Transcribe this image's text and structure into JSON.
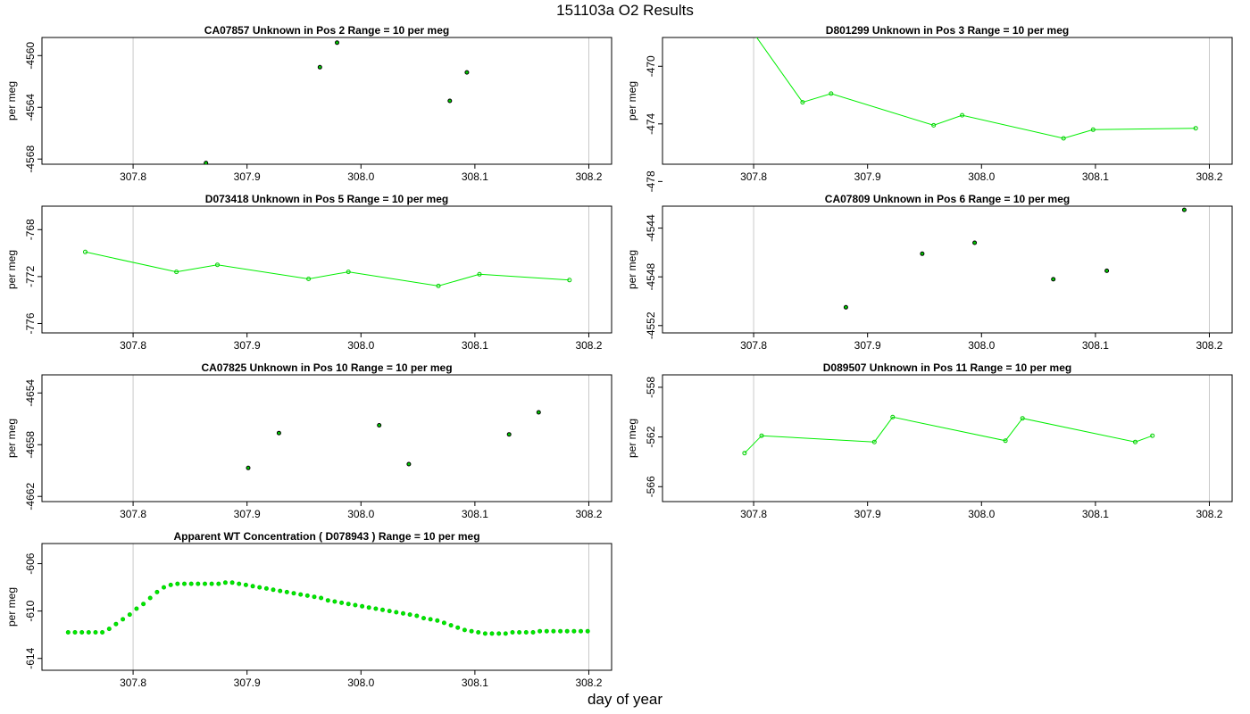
{
  "title": "151103a  O2 Results",
  "xlabel": "day of year",
  "chart_data": [
    {
      "type": "scatter",
      "title": "CA07857    Unknown in Pos 2          Range = 10 per meg",
      "xlabel": "",
      "ylabel": "per meg",
      "xlim": [
        307.72,
        308.22
      ],
      "ylim": [
        -4568.4,
        -4558.6
      ],
      "xticks": [
        "307.8",
        "307.9",
        "308.0",
        "308.1",
        "308.2"
      ],
      "yticks": [
        "-4560",
        "-4564",
        "-4568"
      ],
      "vlines": [
        307.8,
        308.2
      ],
      "connected": false,
      "color": "#00cc00",
      "edge_color": "#000000",
      "series": [
        {
          "x": [
            307.864,
            307.964,
            307.979,
            308.078,
            308.093
          ],
          "y": [
            -4568.3,
            -4560.9,
            -4559.0,
            -4563.5,
            -4561.3
          ]
        }
      ]
    },
    {
      "type": "line",
      "title": "D801299    Unknown in Pos 3          Range = 10 per meg",
      "xlabel": "",
      "ylabel": "per meg",
      "xlim": [
        307.72,
        308.22
      ],
      "ylim": [
        -476.8,
        -468.0
      ],
      "xticks": [
        "307.8",
        "307.9",
        "308.0",
        "308.1",
        "308.2"
      ],
      "yticks": [
        "-470",
        "-474",
        "-478"
      ],
      "vlines": [
        307.8,
        308.2
      ],
      "connected": true,
      "color": "#00ee00",
      "edge_color": "#00cc00",
      "series": [
        {
          "x": [
            307.8,
            307.843,
            307.868,
            307.958,
            307.983,
            308.072,
            308.098,
            308.188
          ],
          "y": [
            -467.7,
            -472.5,
            -471.9,
            -474.1,
            -473.4,
            -475.0,
            -474.4,
            -474.3
          ]
        }
      ]
    },
    {
      "type": "line",
      "title": "D073418    Unknown in Pos 5          Range = 10 per meg",
      "xlabel": "",
      "ylabel": "per meg",
      "xlim": [
        307.72,
        308.22
      ],
      "ylim": [
        -776.8,
        -766.0
      ],
      "xticks": [
        "307.8",
        "307.9",
        "308.0",
        "308.1",
        "308.2"
      ],
      "yticks": [
        "-768",
        "-772",
        "-776"
      ],
      "vlines": [
        307.8,
        308.2
      ],
      "connected": true,
      "color": "#00ee00",
      "edge_color": "#00cc00",
      "series": [
        {
          "x": [
            307.758,
            307.838,
            307.874,
            307.954,
            307.989,
            308.068,
            308.104,
            308.183
          ],
          "y": [
            -769.9,
            -771.6,
            -771.0,
            -772.2,
            -771.6,
            -772.8,
            -771.8,
            -772.3
          ]
        }
      ]
    },
    {
      "type": "scatter",
      "title": "CA07809    Unknown in Pos 6          Range = 10 per meg",
      "xlabel": "",
      "ylabel": "per meg",
      "xlim": [
        307.72,
        308.22
      ],
      "ylim": [
        -4552.6,
        -4542.2
      ],
      "xticks": [
        "307.8",
        "307.9",
        "308.0",
        "308.1",
        "308.2"
      ],
      "yticks": [
        "-4544",
        "-4548",
        "-4552"
      ],
      "vlines": [
        307.8,
        308.2
      ],
      "connected": false,
      "color": "#00cc00",
      "edge_color": "#000000",
      "series": [
        {
          "x": [
            307.881,
            307.948,
            307.994,
            308.063,
            308.11,
            308.178
          ],
          "y": [
            -4550.5,
            -4546.1,
            -4545.2,
            -4548.2,
            -4547.5,
            -4542.5
          ]
        }
      ]
    },
    {
      "type": "scatter",
      "title": "CA07825    Unknown in Pos 10          Range = 10 per meg",
      "xlabel": "",
      "ylabel": "per meg",
      "xlim": [
        307.72,
        308.22
      ],
      "ylim": [
        -4662.4,
        -4652.6
      ],
      "xticks": [
        "307.8",
        "307.9",
        "308.0",
        "308.1",
        "308.2"
      ],
      "yticks": [
        "-4654",
        "-4658",
        "-4662"
      ],
      "vlines": [
        307.8,
        308.2
      ],
      "connected": false,
      "color": "#00cc00",
      "edge_color": "#000000",
      "series": [
        {
          "x": [
            307.901,
            307.928,
            308.016,
            308.042,
            308.13,
            308.156
          ],
          "y": [
            -4659.8,
            -4657.1,
            -4656.5,
            -4659.5,
            -4657.2,
            -4655.5
          ]
        }
      ]
    },
    {
      "type": "line",
      "title": "D089507    Unknown in Pos 11          Range = 10 per meg",
      "xlabel": "",
      "ylabel": "per meg",
      "xlim": [
        307.72,
        308.22
      ],
      "ylim": [
        -567.2,
        -557.0
      ],
      "xticks": [
        "307.8",
        "307.9",
        "308.0",
        "308.1",
        "308.2"
      ],
      "yticks": [
        "-558",
        "-562",
        "-566"
      ],
      "vlines": [
        307.8,
        308.2
      ],
      "connected": true,
      "color": "#00ee00",
      "edge_color": "#00cc00",
      "series": [
        {
          "x": [
            307.792,
            307.807,
            307.906,
            307.922,
            308.021,
            308.036,
            308.135,
            308.15
          ],
          "y": [
            -563.3,
            -561.9,
            -562.4,
            -560.4,
            -562.3,
            -560.5,
            -562.4,
            -561.9
          ]
        }
      ]
    },
    {
      "type": "scatter",
      "title": "Apparent WT Concentration ( D078943 )          Range = 10 per meg",
      "xlabel": "",
      "ylabel": "per meg",
      "xlim": [
        307.72,
        308.22
      ],
      "ylim": [
        -615.0,
        -604.3
      ],
      "xticks": [
        "307.8",
        "307.9",
        "308.0",
        "308.1",
        "308.2"
      ],
      "yticks": [
        "-606",
        "-610",
        "-614"
      ],
      "vlines": [
        307.8,
        308.2
      ],
      "connected": false,
      "color": "#00ee00",
      "edge_color": "#00cc00",
      "series": [
        {
          "x": [
            307.743,
            307.749,
            307.755,
            307.761,
            307.767,
            307.773,
            307.779,
            307.785,
            307.791,
            307.797,
            307.803,
            307.809,
            307.815,
            307.821,
            307.827,
            307.833,
            307.839,
            307.845,
            307.851,
            307.857,
            307.863,
            307.869,
            307.875,
            307.881,
            307.887,
            307.893,
            307.899,
            307.905,
            307.911,
            307.917,
            307.923,
            307.929,
            307.935,
            307.941,
            307.947,
            307.953,
            307.959,
            307.965,
            307.971,
            307.977,
            307.983,
            307.989,
            307.995,
            308.001,
            308.007,
            308.013,
            308.019,
            308.025,
            308.031,
            308.037,
            308.043,
            308.049,
            308.055,
            308.061,
            308.067,
            308.073,
            308.079,
            308.085,
            308.091,
            308.097,
            308.103,
            308.109,
            308.115,
            308.121,
            308.127,
            308.133,
            308.139,
            308.145,
            308.151,
            308.157,
            308.163,
            308.169,
            308.175,
            308.181,
            308.187,
            308.193,
            308.199
          ],
          "y": [
            -611.8,
            -611.8,
            -611.8,
            -611.8,
            -611.8,
            -611.8,
            -611.5,
            -611.1,
            -610.7,
            -610.3,
            -609.8,
            -609.4,
            -608.9,
            -608.4,
            -608.0,
            -607.8,
            -607.7,
            -607.7,
            -607.7,
            -607.7,
            -607.7,
            -607.7,
            -607.7,
            -607.6,
            -607.6,
            -607.7,
            -607.8,
            -607.9,
            -608.0,
            -608.1,
            -608.2,
            -608.3,
            -608.4,
            -608.5,
            -608.6,
            -608.7,
            -608.8,
            -608.9,
            -609.1,
            -609.2,
            -609.3,
            -609.4,
            -609.5,
            -609.6,
            -609.7,
            -609.8,
            -609.9,
            -610.0,
            -610.1,
            -610.2,
            -610.3,
            -610.4,
            -610.6,
            -610.7,
            -610.8,
            -611.0,
            -611.2,
            -611.4,
            -611.6,
            -611.7,
            -611.8,
            -611.9,
            -611.9,
            -611.9,
            -611.9,
            -611.8,
            -611.8,
            -611.8,
            -611.8,
            -611.7,
            -611.7,
            -611.7,
            -611.7,
            -611.7,
            -611.7,
            -611.7,
            -611.7
          ]
        }
      ]
    }
  ]
}
